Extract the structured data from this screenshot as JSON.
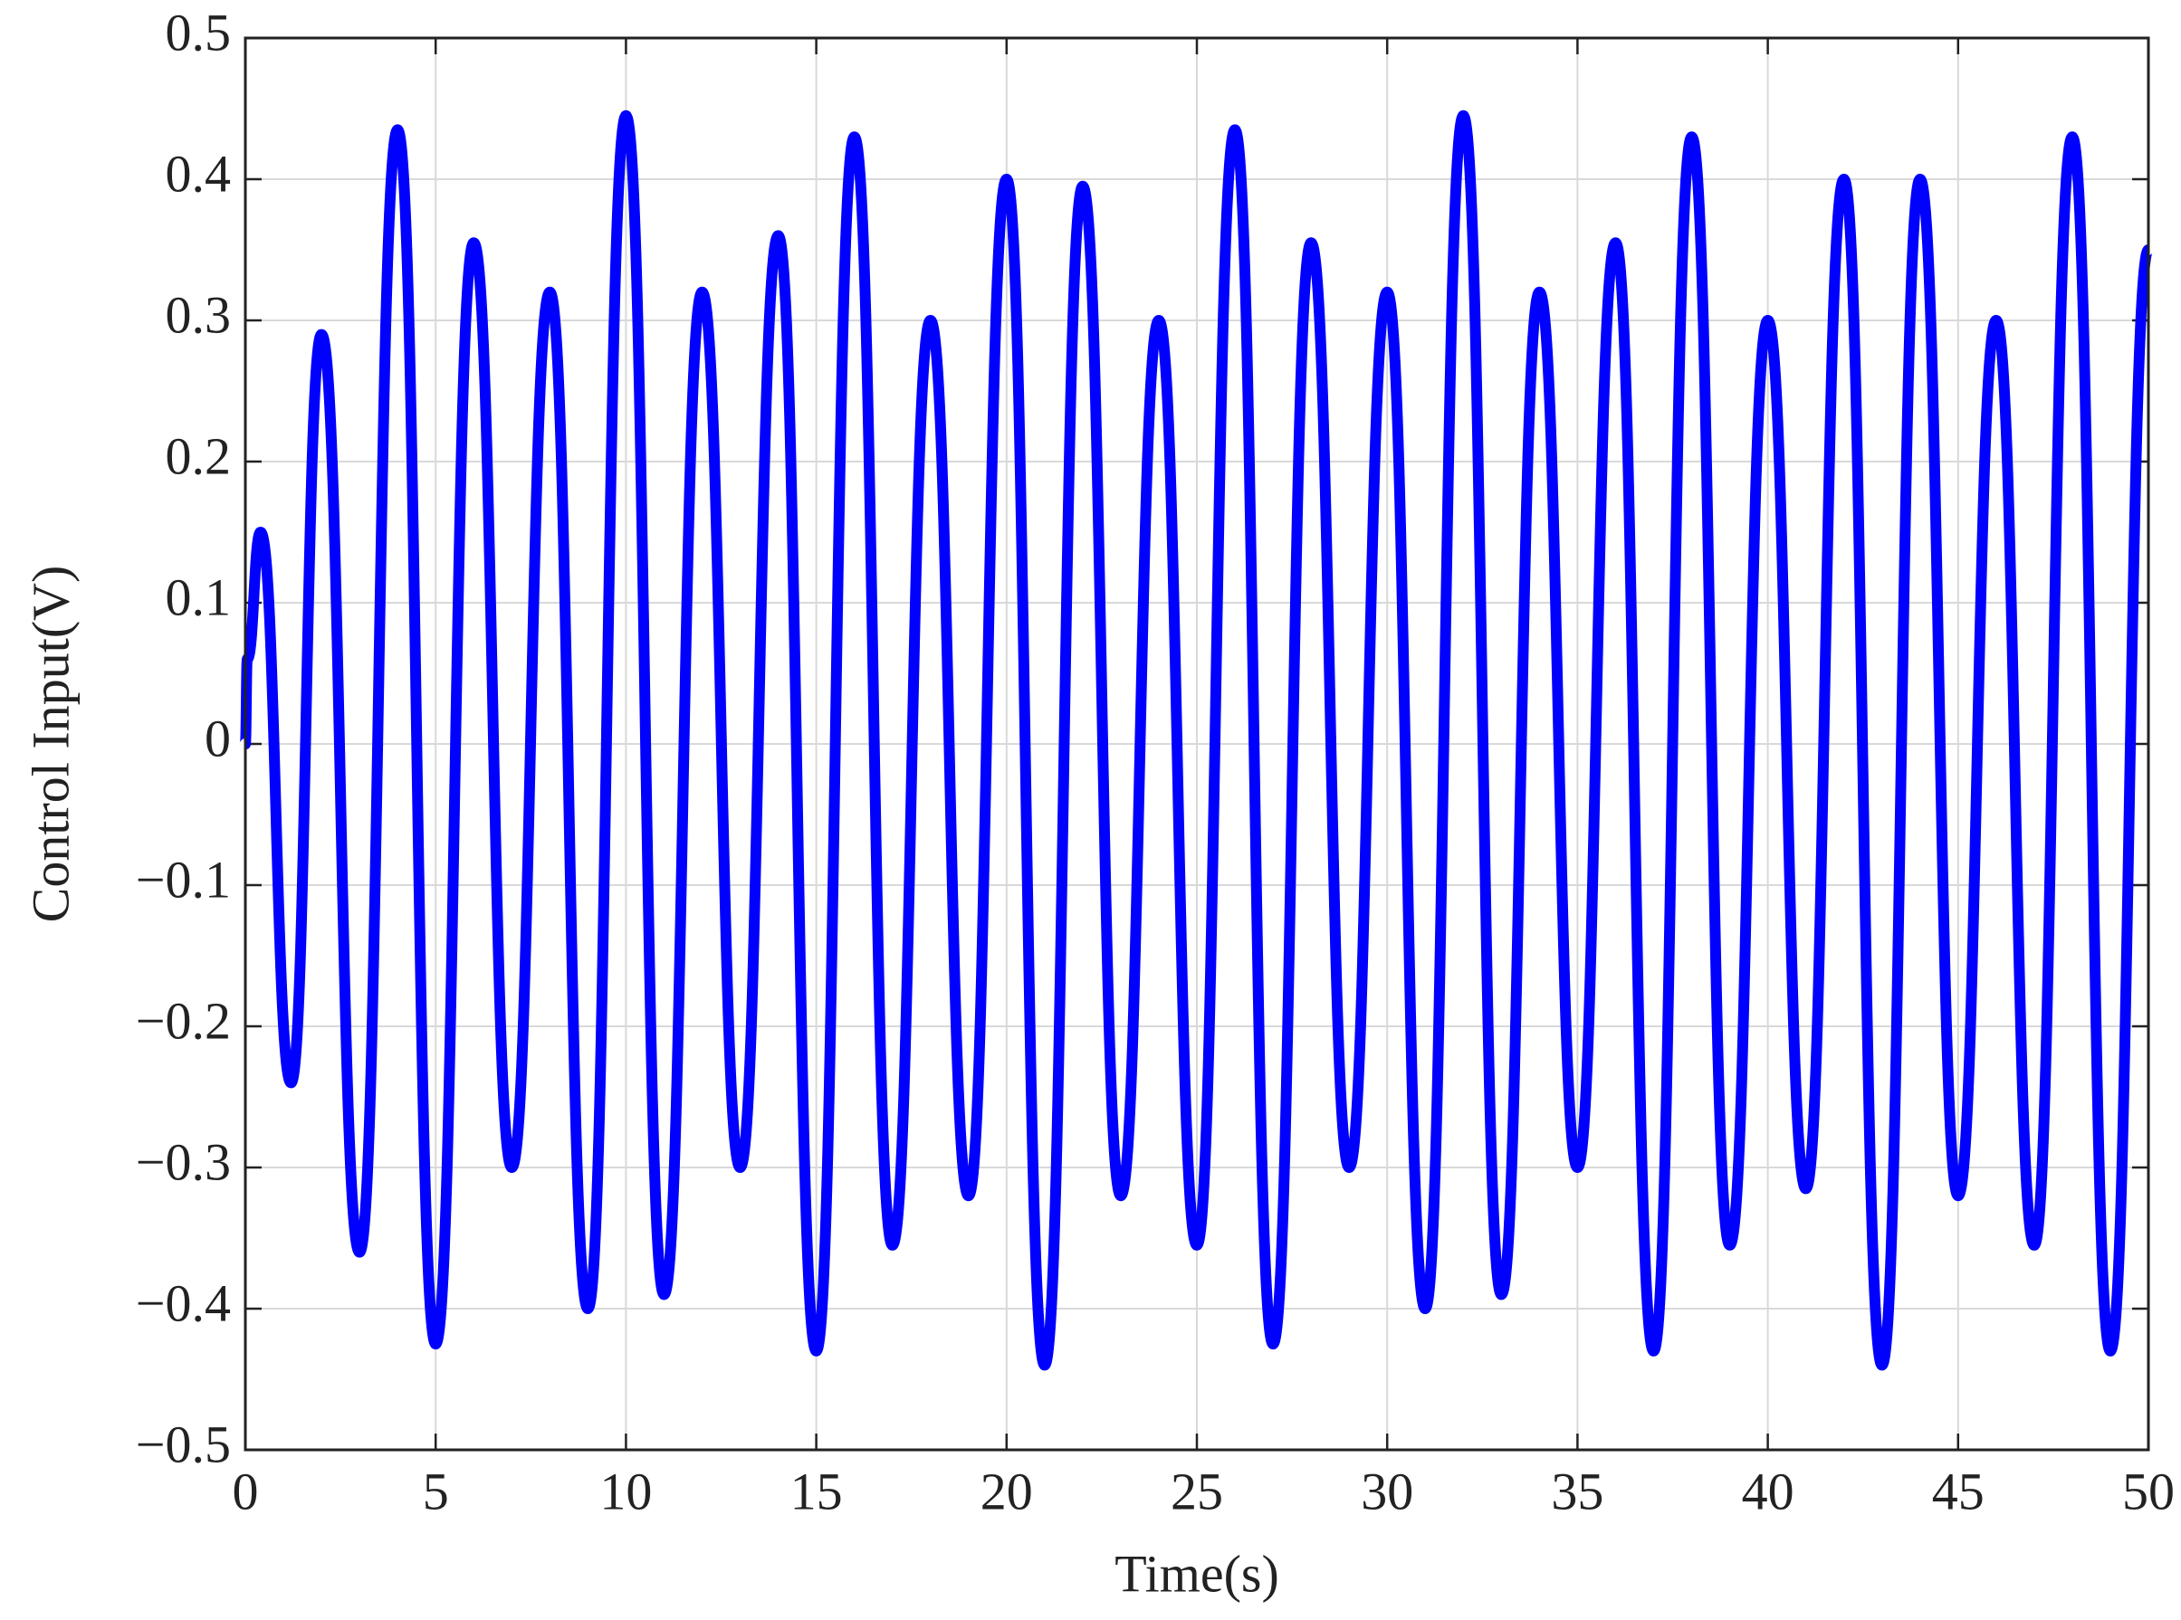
{
  "chart_data": {
    "type": "line",
    "xlabel": "Time(s)",
    "ylabel": "Control Input(V)",
    "x": [
      0,
      0.05,
      0.4,
      1.2,
      2,
      3,
      4,
      5,
      6,
      7,
      8,
      9,
      10,
      11,
      12,
      13,
      14,
      15,
      16,
      17,
      18,
      19,
      20,
      21,
      22,
      23,
      24,
      25,
      26,
      27,
      28,
      29,
      30,
      31,
      32,
      33,
      34,
      35,
      36,
      37,
      38,
      39,
      40,
      41,
      42,
      43,
      44,
      45,
      46,
      47,
      48,
      49,
      50
    ],
    "series": [
      {
        "color": "#0000ff",
        "values": [
          0,
          0.06,
          0.15,
          -0.24,
          0.29,
          -0.36,
          0.435,
          -0.425,
          0.355,
          -0.3,
          0.32,
          -0.4,
          0.445,
          -0.39,
          0.32,
          -0.3,
          0.36,
          -0.43,
          0.43,
          -0.355,
          0.3,
          -0.32,
          0.4,
          -0.44,
          0.395,
          -0.32,
          0.3,
          -0.355,
          0.435,
          -0.425,
          0.355,
          -0.3,
          0.32,
          -0.4,
          0.445,
          -0.39,
          0.32,
          -0.3,
          0.355,
          -0.43,
          0.43,
          -0.355,
          0.3,
          -0.315,
          0.4,
          -0.44,
          0.4,
          -0.32,
          0.3,
          -0.355,
          0.43,
          -0.43,
          0.35
        ]
      }
    ],
    "xlim": [
      0,
      50
    ],
    "xticks": [
      0,
      5,
      10,
      15,
      20,
      25,
      30,
      35,
      40,
      45,
      50
    ],
    "ylim": [
      -0.5,
      0.5
    ],
    "yticks": [
      {
        "value": -0.5,
        "label": "−0.5"
      },
      {
        "value": -0.4,
        "label": "−0.4"
      },
      {
        "value": -0.3,
        "label": "−0.3"
      },
      {
        "value": -0.2,
        "label": "−0.2"
      },
      {
        "value": -0.1,
        "label": "−0.1"
      },
      0,
      0.1,
      0.2,
      0.3,
      0.4,
      0.5
    ],
    "grid": true
  }
}
